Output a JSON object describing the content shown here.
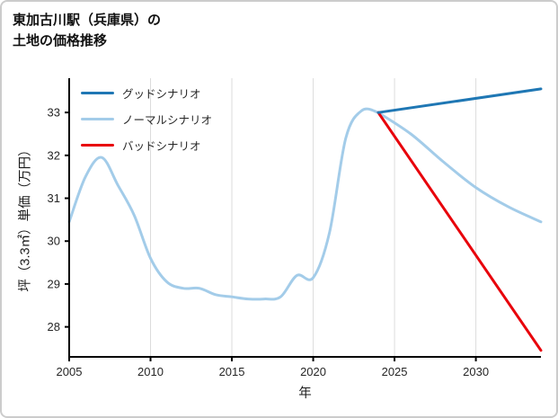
{
  "page": {
    "title_line1": "東加古川駅（兵庫県）の",
    "title_line2": "土地の価格推移"
  },
  "chart_data": {
    "type": "line",
    "title": "東加古川駅（兵庫県）の土地の価格推移",
    "xlabel": "年",
    "ylabel": "坪（3.3㎡）単価（万円）",
    "xlim": [
      2005,
      2034
    ],
    "ylim": [
      27.3,
      33.8
    ],
    "xticks": [
      2005,
      2010,
      2015,
      2020,
      2025,
      2030
    ],
    "yticks": [
      28,
      29,
      30,
      31,
      32,
      33
    ],
    "grid": "vertical-only",
    "legend_position": "top-left",
    "colors": {
      "good": "#1f77b4",
      "normal": "#a3cce9",
      "bad": "#e8000b",
      "grid": "#dcdcdc",
      "axis": "#000000"
    },
    "legend": [
      {
        "id": "good",
        "label": "グッドシナリオ",
        "color": "#1f77b4"
      },
      {
        "id": "normal",
        "label": "ノーマルシナリオ",
        "color": "#a3cce9"
      },
      {
        "id": "bad",
        "label": "バッドシナリオ",
        "color": "#e8000b"
      }
    ],
    "series": [
      {
        "id": "history",
        "color": "#a3cce9",
        "width": 3,
        "smooth": true,
        "x": [
          2005,
          2006,
          2007,
          2008,
          2009,
          2010,
          2011,
          2012,
          2013,
          2014,
          2015,
          2016,
          2017,
          2018,
          2019,
          2020,
          2021,
          2022,
          2023,
          2024
        ],
        "y": [
          30.45,
          31.5,
          31.95,
          31.3,
          30.6,
          29.6,
          29.05,
          28.9,
          28.9,
          28.75,
          28.7,
          28.65,
          28.65,
          28.7,
          29.2,
          29.15,
          30.2,
          32.4,
          33.05,
          33.0
        ]
      },
      {
        "id": "normal-forecast",
        "color": "#a3cce9",
        "width": 3,
        "smooth": true,
        "x": [
          2024,
          2026,
          2028,
          2030,
          2032,
          2034
        ],
        "y": [
          33.0,
          32.5,
          31.85,
          31.25,
          30.8,
          30.45
        ]
      },
      {
        "id": "bad-forecast",
        "color": "#e8000b",
        "width": 3,
        "smooth": false,
        "x": [
          2024,
          2034
        ],
        "y": [
          33.0,
          27.45
        ]
      },
      {
        "id": "good-forecast",
        "color": "#1f77b4",
        "width": 3,
        "smooth": false,
        "x": [
          2024,
          2034
        ],
        "y": [
          33.0,
          33.55
        ]
      }
    ]
  }
}
